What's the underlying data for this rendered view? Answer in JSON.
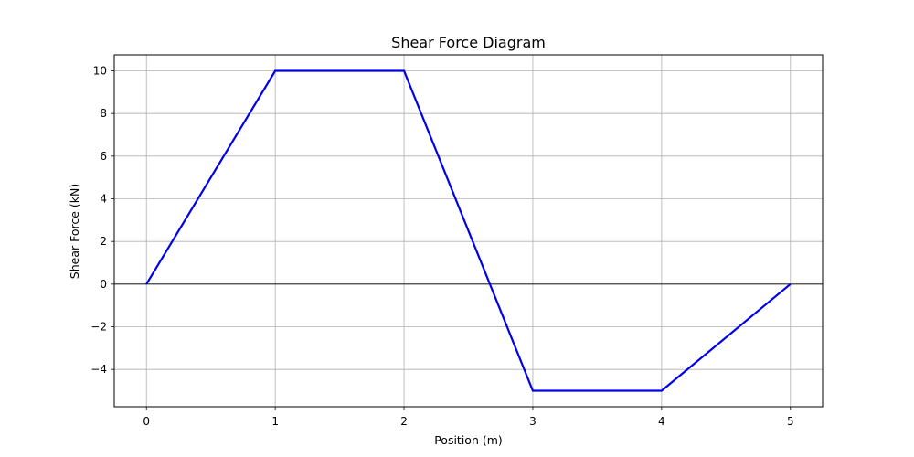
{
  "chart_data": {
    "type": "line",
    "title": "Shear Force Diagram",
    "xlabel": "Position (m)",
    "ylabel": "Shear Force (kN)",
    "xlim": [
      -0.25,
      5.25
    ],
    "ylim": [
      -5.75,
      10.75
    ],
    "xticks": [
      0,
      1,
      2,
      3,
      4,
      5
    ],
    "yticks": [
      -4,
      -2,
      0,
      2,
      4,
      6,
      8,
      10
    ],
    "xtick_labels": [
      "0",
      "1",
      "2",
      "3",
      "4",
      "5"
    ],
    "ytick_labels": [
      "−4",
      "−2",
      "0",
      "2",
      "4",
      "6",
      "8",
      "10"
    ],
    "grid": true,
    "zero_line": true,
    "series": [
      {
        "x": [
          0,
          1,
          2,
          3,
          4,
          5
        ],
        "y": [
          0,
          10,
          10,
          -5,
          -5,
          0
        ],
        "color": "#0000ee"
      }
    ],
    "colors": {
      "grid": "#b0b0b0",
      "axes": "#000000",
      "zero_line": "#000000"
    }
  }
}
